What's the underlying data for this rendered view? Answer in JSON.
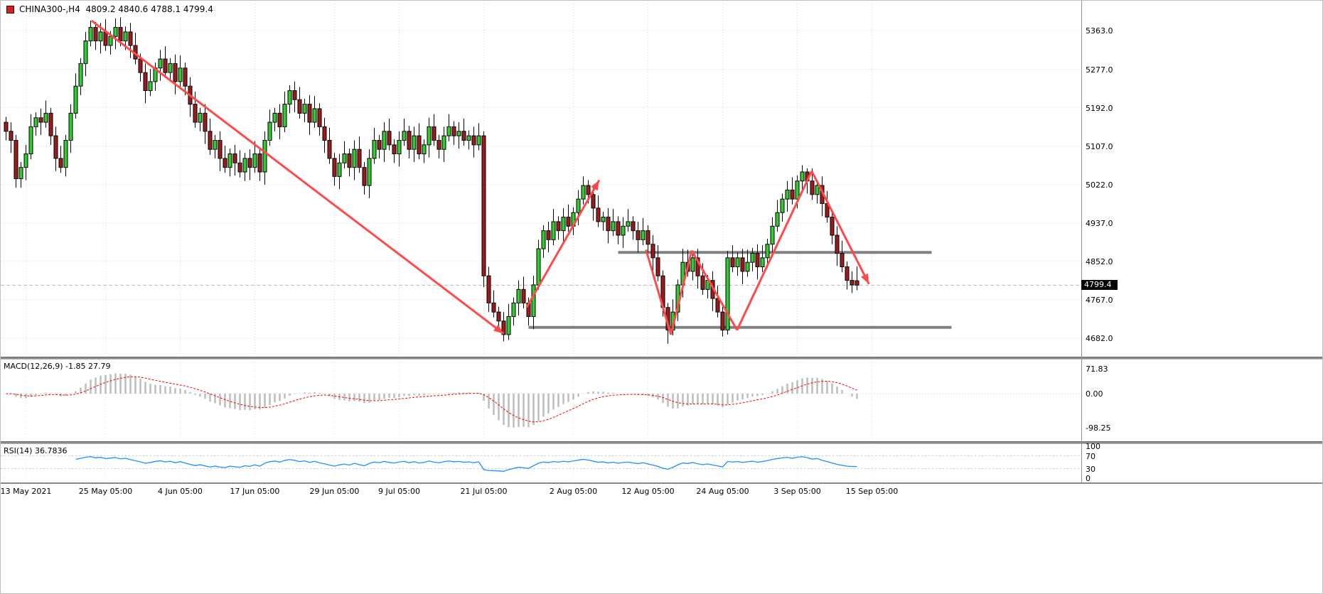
{
  "window": {
    "title": "CHINA300-,H4",
    "ohlc_text": "4809.2 4840.6 4788.1 4799.4"
  },
  "chart_data": {
    "type": "candlestick",
    "symbol": "CHINA300-,H4",
    "timeframe": "H4",
    "title": "CHINA300-,H4",
    "last_bar": {
      "open": 4809.2,
      "high": 4840.6,
      "low": 4788.1,
      "close": 4799.4
    },
    "price_axis": {
      "ticks": [
        5363.0,
        5277.0,
        5192.0,
        5107.0,
        5022.0,
        4937.0,
        4852.0,
        4767.0,
        4682.0
      ],
      "current": 4799.4,
      "current_label": "4799.4"
    },
    "time_axis": {
      "ticks": [
        {
          "label": "13 May 2021",
          "i": 4
        },
        {
          "label": "25 May 05:00",
          "i": 20
        },
        {
          "label": "4 Jun 05:00",
          "i": 35
        },
        {
          "label": "17 Jun 05:00",
          "i": 50
        },
        {
          "label": "29 Jun 05:00",
          "i": 66
        },
        {
          "label": "9 Jul 05:00",
          "i": 79
        },
        {
          "label": "21 Jul 05:00",
          "i": 96
        },
        {
          "label": "2 Aug 05:00",
          "i": 114
        },
        {
          "label": "12 Aug 05:00",
          "i": 129
        },
        {
          "label": "24 Aug 05:00",
          "i": 144
        },
        {
          "label": "3 Sep 05:00",
          "i": 159
        },
        {
          "label": "15 Sep 05:00",
          "i": 174
        }
      ]
    },
    "candles": [
      [
        5160,
        5172,
        5120,
        5140
      ],
      [
        5140,
        5160,
        5092,
        5120
      ],
      [
        5120,
        5132,
        5015,
        5035
      ],
      [
        5035,
        5072,
        5015,
        5060
      ],
      [
        5060,
        5110,
        5032,
        5090
      ],
      [
        5090,
        5178,
        5078,
        5150
      ],
      [
        5150,
        5182,
        5130,
        5170
      ],
      [
        5170,
        5190,
        5132,
        5160
      ],
      [
        5160,
        5208,
        5148,
        5180
      ],
      [
        5180,
        5192,
        5110,
        5130
      ],
      [
        5130,
        5150,
        5052,
        5080
      ],
      [
        5080,
        5108,
        5048,
        5060
      ],
      [
        5060,
        5132,
        5040,
        5120
      ],
      [
        5120,
        5200,
        5092,
        5180
      ],
      [
        5180,
        5268,
        5168,
        5240
      ],
      [
        5240,
        5302,
        5220,
        5290
      ],
      [
        5290,
        5360,
        5262,
        5340
      ],
      [
        5340,
        5385,
        5328,
        5370
      ],
      [
        5370,
        5382,
        5320,
        5340
      ],
      [
        5340,
        5380,
        5312,
        5360
      ],
      [
        5360,
        5388,
        5318,
        5330
      ],
      [
        5330,
        5362,
        5310,
        5350
      ],
      [
        5350,
        5390,
        5322,
        5370
      ],
      [
        5370,
        5392,
        5328,
        5340
      ],
      [
        5340,
        5372,
        5320,
        5360
      ],
      [
        5360,
        5380,
        5302,
        5330
      ],
      [
        5330,
        5358,
        5288,
        5300
      ],
      [
        5300,
        5312,
        5250,
        5270
      ],
      [
        5270,
        5290,
        5202,
        5230
      ],
      [
        5230,
        5278,
        5218,
        5250
      ],
      [
        5250,
        5292,
        5230,
        5280
      ],
      [
        5280,
        5320,
        5252,
        5300
      ],
      [
        5300,
        5328,
        5258,
        5270
      ],
      [
        5270,
        5302,
        5250,
        5290
      ],
      [
        5290,
        5310,
        5222,
        5250
      ],
      [
        5250,
        5308,
        5238,
        5280
      ],
      [
        5280,
        5292,
        5220,
        5240
      ],
      [
        5240,
        5260,
        5172,
        5200
      ],
      [
        5200,
        5228,
        5148,
        5160
      ],
      [
        5160,
        5192,
        5140,
        5180
      ],
      [
        5180,
        5200,
        5112,
        5140
      ],
      [
        5140,
        5168,
        5088,
        5100
      ],
      [
        5100,
        5132,
        5080,
        5120
      ],
      [
        5120,
        5140,
        5052,
        5080
      ],
      [
        5080,
        5108,
        5048,
        5060
      ],
      [
        5060,
        5102,
        5040,
        5090
      ],
      [
        5090,
        5110,
        5042,
        5070
      ],
      [
        5070,
        5098,
        5038,
        5050
      ],
      [
        5050,
        5092,
        5030,
        5080
      ],
      [
        5080,
        5100,
        5032,
        5060
      ],
      [
        5060,
        5118,
        5048,
        5090
      ],
      [
        5090,
        5102,
        5030,
        5050
      ],
      [
        5050,
        5140,
        5022,
        5120
      ],
      [
        5120,
        5188,
        5108,
        5160
      ],
      [
        5160,
        5192,
        5140,
        5180
      ],
      [
        5180,
        5200,
        5122,
        5150
      ],
      [
        5150,
        5228,
        5138,
        5200
      ],
      [
        5200,
        5242,
        5180,
        5230
      ],
      [
        5230,
        5250,
        5182,
        5210
      ],
      [
        5210,
        5238,
        5168,
        5180
      ],
      [
        5180,
        5212,
        5160,
        5200
      ],
      [
        5200,
        5220,
        5132,
        5160
      ],
      [
        5160,
        5218,
        5148,
        5190
      ],
      [
        5190,
        5202,
        5130,
        5150
      ],
      [
        5150,
        5170,
        5092,
        5120
      ],
      [
        5120,
        5148,
        5068,
        5080
      ],
      [
        5080,
        5092,
        5020,
        5040
      ],
      [
        5040,
        5090,
        5012,
        5070
      ],
      [
        5070,
        5118,
        5058,
        5090
      ],
      [
        5090,
        5102,
        5040,
        5060
      ],
      [
        5060,
        5120,
        5032,
        5100
      ],
      [
        5100,
        5128,
        5048,
        5060
      ],
      [
        5060,
        5072,
        5000,
        5020
      ],
      [
        5020,
        5100,
        4992,
        5080
      ],
      [
        5080,
        5148,
        5068,
        5120
      ],
      [
        5120,
        5132,
        5080,
        5100
      ],
      [
        5100,
        5160,
        5072,
        5140
      ],
      [
        5140,
        5168,
        5098,
        5110
      ],
      [
        5110,
        5122,
        5070,
        5090
      ],
      [
        5090,
        5140,
        5062,
        5120
      ],
      [
        5120,
        5168,
        5108,
        5140
      ],
      [
        5140,
        5152,
        5080,
        5100
      ],
      [
        5100,
        5150,
        5072,
        5130
      ],
      [
        5130,
        5158,
        5078,
        5090
      ],
      [
        5090,
        5122,
        5070,
        5110
      ],
      [
        5110,
        5170,
        5082,
        5150
      ],
      [
        5150,
        5178,
        5108,
        5120
      ],
      [
        5120,
        5132,
        5080,
        5100
      ],
      [
        5100,
        5150,
        5072,
        5130
      ],
      [
        5130,
        5178,
        5118,
        5150
      ],
      [
        5150,
        5162,
        5110,
        5130
      ],
      [
        5130,
        5160,
        5102,
        5140
      ],
      [
        5140,
        5168,
        5108,
        5120
      ],
      [
        5120,
        5142,
        5100,
        5130
      ],
      [
        5130,
        5150,
        5082,
        5110
      ],
      [
        5110,
        5158,
        5098,
        5130
      ],
      [
        5130,
        5140,
        4795,
        4820
      ],
      [
        4820,
        4840,
        4740,
        4760
      ],
      [
        4760,
        4788,
        4728,
        4740
      ],
      [
        4740,
        4752,
        4700,
        4720
      ],
      [
        4720,
        4740,
        4675,
        4690
      ],
      [
        4690,
        4758,
        4678,
        4730
      ],
      [
        4730,
        4772,
        4710,
        4760
      ],
      [
        4760,
        4810,
        4732,
        4790
      ],
      [
        4790,
        4818,
        4748,
        4760
      ],
      [
        4760,
        4772,
        4710,
        4730
      ],
      [
        4730,
        4820,
        4702,
        4800
      ],
      [
        4800,
        4900,
        4790,
        4880
      ],
      [
        4880,
        4932,
        4860,
        4920
      ],
      [
        4920,
        4940,
        4872,
        4900
      ],
      [
        4900,
        4968,
        4888,
        4940
      ],
      [
        4940,
        4952,
        4900,
        4920
      ],
      [
        4920,
        4970,
        4892,
        4950
      ],
      [
        4950,
        4978,
        4918,
        4930
      ],
      [
        4930,
        4972,
        4910,
        4960
      ],
      [
        4960,
        5010,
        4932,
        4990
      ],
      [
        4990,
        5040,
        4978,
        5020
      ],
      [
        5020,
        5032,
        4980,
        5000
      ],
      [
        5000,
        5020,
        4942,
        4970
      ],
      [
        4970,
        4998,
        4928,
        4940
      ],
      [
        4940,
        4962,
        4920,
        4950
      ],
      [
        4950,
        4970,
        4892,
        4920
      ],
      [
        4920,
        4968,
        4908,
        4940
      ],
      [
        4940,
        4952,
        4890,
        4910
      ],
      [
        4910,
        4950,
        4882,
        4930
      ],
      [
        4930,
        4968,
        4918,
        4940
      ],
      [
        4940,
        4952,
        4900,
        4920
      ],
      [
        4920,
        4940,
        4872,
        4900
      ],
      [
        4900,
        4948,
        4888,
        4920
      ],
      [
        4920,
        4932,
        4870,
        4890
      ],
      [
        4890,
        4910,
        4832,
        4860
      ],
      [
        4860,
        4888,
        4808,
        4820
      ],
      [
        4820,
        4832,
        4730,
        4750
      ],
      [
        4750,
        4760,
        4670,
        4700
      ],
      [
        4700,
        4768,
        4688,
        4740
      ],
      [
        4740,
        4812,
        4720,
        4800
      ],
      [
        4800,
        4880,
        4772,
        4850
      ],
      [
        4850,
        4878,
        4818,
        4830
      ],
      [
        4830,
        4872,
        4810,
        4860
      ],
      [
        4860,
        4880,
        4792,
        4820
      ],
      [
        4820,
        4848,
        4778,
        4790
      ],
      [
        4790,
        4822,
        4770,
        4810
      ],
      [
        4810,
        4830,
        4742,
        4770
      ],
      [
        4770,
        4798,
        4728,
        4740
      ],
      [
        4740,
        4752,
        4686,
        4700
      ],
      [
        4700,
        4875,
        4690,
        4860
      ],
      [
        4860,
        4888,
        4828,
        4840
      ],
      [
        4840,
        4872,
        4820,
        4860
      ],
      [
        4860,
        4880,
        4802,
        4830
      ],
      [
        4830,
        4878,
        4818,
        4850
      ],
      [
        4850,
        4882,
        4830,
        4870
      ],
      [
        4870,
        4890,
        4812,
        4840
      ],
      [
        4840,
        4888,
        4828,
        4860
      ],
      [
        4860,
        4902,
        4840,
        4890
      ],
      [
        4890,
        4950,
        4862,
        4930
      ],
      [
        4930,
        4988,
        4918,
        4960
      ],
      [
        4960,
        5002,
        4940,
        4990
      ],
      [
        4990,
        5030,
        4962,
        5010
      ],
      [
        5010,
        5038,
        4978,
        4990
      ],
      [
        4990,
        5042,
        4970,
        5030
      ],
      [
        5030,
        5065,
        5010,
        5050
      ],
      [
        5050,
        5058,
        5002,
        5030
      ],
      [
        5030,
        5058,
        4988,
        5000
      ],
      [
        5000,
        5032,
        4980,
        5020
      ],
      [
        5020,
        5040,
        4952,
        4980
      ],
      [
        4980,
        5008,
        4938,
        4950
      ],
      [
        4950,
        4962,
        4890,
        4910
      ],
      [
        4910,
        4930,
        4842,
        4870
      ],
      [
        4870,
        4898,
        4828,
        4840
      ],
      [
        4840,
        4852,
        4790,
        4810
      ],
      [
        4810,
        4830,
        4782,
        4800
      ],
      [
        4809.2,
        4840.6,
        4788.1,
        4799.4
      ]
    ],
    "overlays": {
      "resistance_line": {
        "price": 4872,
        "from_i": 123,
        "to_i": 186
      },
      "support_line": {
        "price": 4706,
        "from_i": 105,
        "to_i": 190
      },
      "trend_arrows": [
        {
          "from": [
            17.2,
            5385
          ],
          "to": [
            100,
            4692
          ],
          "head": true
        },
        {
          "from": [
            104.6,
            4750
          ],
          "to": [
            119.2,
            5032
          ],
          "head": true
        },
        {
          "from": [
            128.6,
            4878
          ],
          "to": [
            133.6,
            4690
          ],
          "head": false
        },
        {
          "from": [
            133.6,
            4690
          ],
          "to": [
            137.8,
            4876
          ],
          "head": false
        },
        {
          "from": [
            137.8,
            4876
          ],
          "to": [
            146.9,
            4700
          ],
          "head": false
        },
        {
          "from": [
            146.9,
            4700
          ],
          "to": [
            161.9,
            5052
          ],
          "head": false
        },
        {
          "from": [
            161.9,
            5052
          ],
          "to": [
            173.4,
            4802
          ],
          "head": true
        }
      ]
    },
    "indicators": {
      "macd": {
        "label": "MACD(12,26,9)",
        "values_text": "-1.85 27.79",
        "macd_value": -1.85,
        "signal_value": 27.79,
        "params": [
          12,
          26,
          9
        ],
        "ticks": [
          71.83,
          0.0,
          -98.25
        ]
      },
      "rsi": {
        "label": "RSI(14)",
        "value_text": "36.7836",
        "value": 36.7836,
        "period": 14,
        "ticks": [
          100,
          70,
          30,
          0
        ],
        "levels": [
          70,
          30
        ]
      }
    },
    "colors": {
      "up": "#32CD32",
      "down": "#9B1C1C",
      "wick": "#000000",
      "arrow": "#FF4A4A",
      "sr": "#808080",
      "grid": "#D4D4D4",
      "macd_hist": "#BDBDBD",
      "macd_signal": "#FF0000",
      "rsi": "#1E90FF",
      "current_price_bg": "#000000"
    },
    "axis_ranges": {
      "price_top_tick_y": 42,
      "price_bottom_tick_y": 475,
      "grid": "dotted"
    }
  }
}
